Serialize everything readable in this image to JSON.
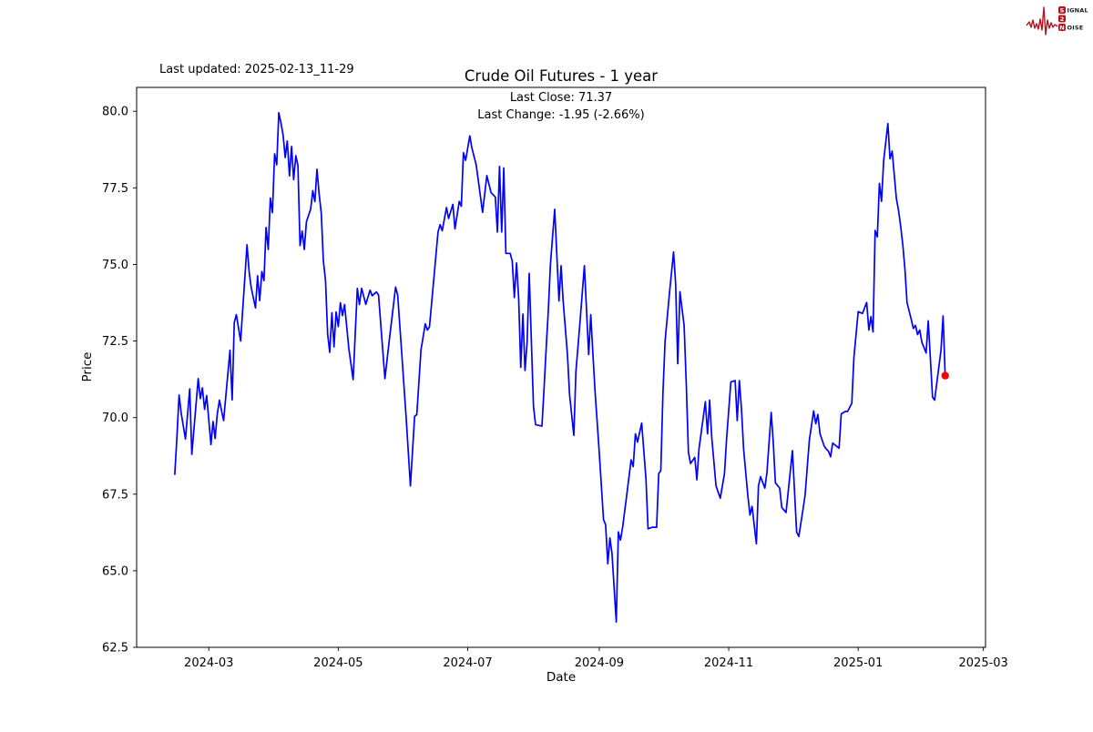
{
  "header": {
    "last_updated": "Last updated: 2025-02-13_11-29",
    "title": "Crude Oil Futures - 1 year",
    "annotation_line1": "Last Close: 71.37",
    "annotation_line2": "Last Change: -1.95 (-2.66%)"
  },
  "logo": {
    "letter1": "S",
    "word1": "IGNAL",
    "letter2": "2",
    "letter3": "N",
    "word2": "OISE",
    "color": "#b5121b"
  },
  "chart_data": {
    "type": "line",
    "title": "Crude Oil Futures - 1 year",
    "xlabel": "Date",
    "ylabel": "Price",
    "legend": "none",
    "grid": false,
    "line_color": "#0000ff",
    "last_point_color": "#ff0000",
    "last_close": 71.37,
    "last_change_abs": -1.95,
    "last_change_pct": -2.66,
    "xlim": [
      "2024-01-27",
      "2025-03-02"
    ],
    "ylim": [
      62.5,
      80.78
    ],
    "y_ticks": [
      62.5,
      65.0,
      67.5,
      70.0,
      72.5,
      75.0,
      77.5,
      80.0
    ],
    "x_ticks": [
      {
        "date": "2024-03-01",
        "label": "2024-03"
      },
      {
        "date": "2024-05-01",
        "label": "2024-05"
      },
      {
        "date": "2024-07-01",
        "label": "2024-07"
      },
      {
        "date": "2024-09-01",
        "label": "2024-09"
      },
      {
        "date": "2024-11-01",
        "label": "2024-11"
      },
      {
        "date": "2025-01-01",
        "label": "2025-01"
      },
      {
        "date": "2025-03-01",
        "label": "2025-03"
      }
    ],
    "series": [
      [
        "2024-02-14",
        68.15
      ],
      [
        "2024-02-15",
        69.4
      ],
      [
        "2024-02-16",
        70.74
      ],
      [
        "2024-02-17",
        70.15
      ],
      [
        "2024-02-19",
        69.3
      ],
      [
        "2024-02-21",
        70.94
      ],
      [
        "2024-02-22",
        68.8
      ],
      [
        "2024-02-25",
        71.27
      ],
      [
        "2024-02-26",
        70.62
      ],
      [
        "2024-02-27",
        70.97
      ],
      [
        "2024-02-28",
        70.27
      ],
      [
        "2024-02-29",
        70.72
      ],
      [
        "2024-03-02",
        69.12
      ],
      [
        "2024-03-03",
        69.87
      ],
      [
        "2024-03-04",
        69.32
      ],
      [
        "2024-03-05",
        70.1
      ],
      [
        "2024-03-06",
        70.57
      ],
      [
        "2024-03-08",
        69.9
      ],
      [
        "2024-03-11",
        72.2
      ],
      [
        "2024-03-12",
        70.58
      ],
      [
        "2024-03-13",
        73.1
      ],
      [
        "2024-03-14",
        73.36
      ],
      [
        "2024-03-16",
        72.5
      ],
      [
        "2024-03-19",
        75.64
      ],
      [
        "2024-03-20",
        74.77
      ],
      [
        "2024-03-21",
        74.24
      ],
      [
        "2024-03-23",
        73.58
      ],
      [
        "2024-03-24",
        74.63
      ],
      [
        "2024-03-25",
        73.82
      ],
      [
        "2024-03-26",
        74.77
      ],
      [
        "2024-03-27",
        74.47
      ],
      [
        "2024-03-28",
        76.21
      ],
      [
        "2024-03-29",
        75.49
      ],
      [
        "2024-03-30",
        77.17
      ],
      [
        "2024-03-31",
        76.69
      ],
      [
        "2024-04-01",
        78.61
      ],
      [
        "2024-04-02",
        78.25
      ],
      [
        "2024-04-03",
        79.95
      ],
      [
        "2024-04-04",
        79.63
      ],
      [
        "2024-04-05",
        79.23
      ],
      [
        "2024-04-06",
        78.49
      ],
      [
        "2024-04-07",
        79.03
      ],
      [
        "2024-04-08",
        77.89
      ],
      [
        "2024-04-09",
        78.85
      ],
      [
        "2024-04-10",
        77.77
      ],
      [
        "2024-04-11",
        78.55
      ],
      [
        "2024-04-12",
        78.23
      ],
      [
        "2024-04-13",
        75.61
      ],
      [
        "2024-04-14",
        76.09
      ],
      [
        "2024-04-15",
        75.49
      ],
      [
        "2024-04-16",
        76.39
      ],
      [
        "2024-04-18",
        76.81
      ],
      [
        "2024-04-19",
        77.41
      ],
      [
        "2024-04-20",
        77.05
      ],
      [
        "2024-04-21",
        78.11
      ],
      [
        "2024-04-22",
        77.29
      ],
      [
        "2024-04-23",
        76.69
      ],
      [
        "2024-04-24",
        75.13
      ],
      [
        "2024-04-25",
        74.47
      ],
      [
        "2024-04-26",
        72.73
      ],
      [
        "2024-04-27",
        72.13
      ],
      [
        "2024-04-28",
        73.42
      ],
      [
        "2024-04-29",
        72.31
      ],
      [
        "2024-04-30",
        73.45
      ],
      [
        "2024-05-01",
        72.97
      ],
      [
        "2024-05-02",
        73.75
      ],
      [
        "2024-05-03",
        73.33
      ],
      [
        "2024-05-04",
        73.69
      ],
      [
        "2024-05-06",
        72.25
      ],
      [
        "2024-05-08",
        71.24
      ],
      [
        "2024-05-10",
        74.22
      ],
      [
        "2024-05-11",
        73.69
      ],
      [
        "2024-05-12",
        74.22
      ],
      [
        "2024-05-14",
        73.7
      ],
      [
        "2024-05-16",
        74.16
      ],
      [
        "2024-05-17",
        73.98
      ],
      [
        "2024-05-19",
        74.1
      ],
      [
        "2024-05-20",
        74.0
      ],
      [
        "2024-05-23",
        71.27
      ],
      [
        "2024-05-25",
        72.5
      ],
      [
        "2024-05-28",
        74.26
      ],
      [
        "2024-05-29",
        74.0
      ],
      [
        "2024-05-31",
        72.0
      ],
      [
        "2024-06-02",
        70.0
      ],
      [
        "2024-06-04",
        67.77
      ],
      [
        "2024-06-06",
        70.04
      ],
      [
        "2024-06-07",
        70.1
      ],
      [
        "2024-06-09",
        72.21
      ],
      [
        "2024-06-11",
        73.06
      ],
      [
        "2024-06-12",
        72.86
      ],
      [
        "2024-06-13",
        72.96
      ],
      [
        "2024-06-15",
        74.5
      ],
      [
        "2024-06-17",
        76.06
      ],
      [
        "2024-06-18",
        76.3
      ],
      [
        "2024-06-19",
        76.1
      ],
      [
        "2024-06-21",
        76.86
      ],
      [
        "2024-06-22",
        76.5
      ],
      [
        "2024-06-24",
        76.96
      ],
      [
        "2024-06-25",
        76.16
      ],
      [
        "2024-06-27",
        77.06
      ],
      [
        "2024-06-28",
        76.9
      ],
      [
        "2024-06-29",
        78.65
      ],
      [
        "2024-06-30",
        78.4
      ],
      [
        "2024-07-02",
        79.2
      ],
      [
        "2024-07-03",
        78.8
      ],
      [
        "2024-07-05",
        78.25
      ],
      [
        "2024-07-06",
        77.75
      ],
      [
        "2024-07-08",
        76.7
      ],
      [
        "2024-07-10",
        77.9
      ],
      [
        "2024-07-12",
        77.35
      ],
      [
        "2024-07-14",
        77.2
      ],
      [
        "2024-07-15",
        76.06
      ],
      [
        "2024-07-16",
        78.2
      ],
      [
        "2024-07-17",
        76.06
      ],
      [
        "2024-07-18",
        78.15
      ],
      [
        "2024-07-19",
        75.36
      ],
      [
        "2024-07-21",
        75.36
      ],
      [
        "2024-07-22",
        75.11
      ],
      [
        "2024-07-23",
        73.92
      ],
      [
        "2024-07-24",
        75.05
      ],
      [
        "2024-07-25",
        73.92
      ],
      [
        "2024-07-26",
        71.64
      ],
      [
        "2024-07-27",
        73.38
      ],
      [
        "2024-07-28",
        71.54
      ],
      [
        "2024-07-29",
        72.46
      ],
      [
        "2024-07-30",
        74.71
      ],
      [
        "2024-08-01",
        70.37
      ],
      [
        "2024-08-02",
        69.77
      ],
      [
        "2024-08-05",
        69.72
      ],
      [
        "2024-08-06",
        71.0
      ],
      [
        "2024-08-07",
        72.3
      ],
      [
        "2024-08-08",
        73.5
      ],
      [
        "2024-08-09",
        75.0
      ],
      [
        "2024-08-11",
        76.8
      ],
      [
        "2024-08-13",
        73.81
      ],
      [
        "2024-08-14",
        74.96
      ],
      [
        "2024-08-15",
        73.8
      ],
      [
        "2024-08-17",
        72.06
      ],
      [
        "2024-08-18",
        70.76
      ],
      [
        "2024-08-20",
        69.42
      ],
      [
        "2024-08-21",
        71.5
      ],
      [
        "2024-08-23",
        73.2
      ],
      [
        "2024-08-25",
        74.96
      ],
      [
        "2024-08-27",
        72.06
      ],
      [
        "2024-08-28",
        73.36
      ],
      [
        "2024-08-29",
        72.06
      ],
      [
        "2024-08-30",
        70.86
      ],
      [
        "2024-09-01",
        68.87
      ],
      [
        "2024-09-03",
        66.67
      ],
      [
        "2024-09-04",
        66.5
      ],
      [
        "2024-09-05",
        65.23
      ],
      [
        "2024-09-06",
        66.07
      ],
      [
        "2024-09-07",
        65.57
      ],
      [
        "2024-09-09",
        63.33
      ],
      [
        "2024-09-10",
        66.27
      ],
      [
        "2024-09-11",
        66.0
      ],
      [
        "2024-09-12",
        66.42
      ],
      [
        "2024-09-14",
        67.5
      ],
      [
        "2024-09-16",
        68.62
      ],
      [
        "2024-09-17",
        68.4
      ],
      [
        "2024-09-18",
        69.47
      ],
      [
        "2024-09-19",
        69.2
      ],
      [
        "2024-09-21",
        69.82
      ],
      [
        "2024-09-23",
        68.0
      ],
      [
        "2024-09-24",
        66.37
      ],
      [
        "2024-09-26",
        66.42
      ],
      [
        "2024-09-28",
        66.42
      ],
      [
        "2024-09-29",
        68.17
      ],
      [
        "2024-09-30",
        68.27
      ],
      [
        "2024-10-01",
        70.77
      ],
      [
        "2024-10-02",
        72.5
      ],
      [
        "2024-10-04",
        74.0
      ],
      [
        "2024-10-06",
        75.41
      ],
      [
        "2024-10-07",
        74.36
      ],
      [
        "2024-10-08",
        71.76
      ],
      [
        "2024-10-09",
        74.11
      ],
      [
        "2024-10-11",
        73.0
      ],
      [
        "2024-10-12",
        71.06
      ],
      [
        "2024-10-13",
        68.87
      ],
      [
        "2024-10-14",
        68.5
      ],
      [
        "2024-10-16",
        68.7
      ],
      [
        "2024-10-17",
        67.97
      ],
      [
        "2024-10-18",
        68.97
      ],
      [
        "2024-10-21",
        70.52
      ],
      [
        "2024-10-22",
        69.47
      ],
      [
        "2024-10-23",
        70.57
      ],
      [
        "2024-10-24",
        69.37
      ],
      [
        "2024-10-26",
        67.77
      ],
      [
        "2024-10-28",
        67.37
      ],
      [
        "2024-10-30",
        68.17
      ],
      [
        "2024-10-31",
        69.3
      ],
      [
        "2024-11-02",
        71.16
      ],
      [
        "2024-11-04",
        71.21
      ],
      [
        "2024-11-05",
        69.9
      ],
      [
        "2024-11-06",
        71.21
      ],
      [
        "2024-11-07",
        70.27
      ],
      [
        "2024-11-08",
        68.97
      ],
      [
        "2024-11-10",
        67.47
      ],
      [
        "2024-11-11",
        66.82
      ],
      [
        "2024-11-12",
        67.1
      ],
      [
        "2024-11-14",
        65.88
      ],
      [
        "2024-11-15",
        67.77
      ],
      [
        "2024-11-16",
        68.07
      ],
      [
        "2024-11-18",
        67.7
      ],
      [
        "2024-11-19",
        68.2
      ],
      [
        "2024-11-21",
        70.17
      ],
      [
        "2024-11-22",
        69.17
      ],
      [
        "2024-11-23",
        67.87
      ],
      [
        "2024-11-25",
        67.7
      ],
      [
        "2024-11-26",
        67.07
      ],
      [
        "2024-11-28",
        66.9
      ],
      [
        "2024-12-01",
        68.92
      ],
      [
        "2024-12-03",
        66.27
      ],
      [
        "2024-12-04",
        66.12
      ],
      [
        "2024-12-06",
        67.0
      ],
      [
        "2024-12-07",
        67.47
      ],
      [
        "2024-12-09",
        69.27
      ],
      [
        "2024-12-11",
        70.22
      ],
      [
        "2024-12-12",
        69.8
      ],
      [
        "2024-12-13",
        70.1
      ],
      [
        "2024-12-14",
        69.47
      ],
      [
        "2024-12-16",
        69.07
      ],
      [
        "2024-12-17",
        68.97
      ],
      [
        "2024-12-18",
        68.9
      ],
      [
        "2024-12-19",
        68.72
      ],
      [
        "2024-12-20",
        69.17
      ],
      [
        "2024-12-23",
        69.0
      ],
      [
        "2024-12-24",
        70.12
      ],
      [
        "2024-12-26",
        70.2
      ],
      [
        "2024-12-27",
        70.2
      ],
      [
        "2024-12-29",
        70.47
      ],
      [
        "2024-12-30",
        71.96
      ],
      [
        "2025-01-01",
        73.46
      ],
      [
        "2025-01-03",
        73.4
      ],
      [
        "2025-01-05",
        73.76
      ],
      [
        "2025-01-06",
        72.86
      ],
      [
        "2025-01-07",
        73.3
      ],
      [
        "2025-01-08",
        72.8
      ],
      [
        "2025-01-09",
        76.11
      ],
      [
        "2025-01-10",
        75.9
      ],
      [
        "2025-01-11",
        77.65
      ],
      [
        "2025-01-12",
        77.06
      ],
      [
        "2025-01-13",
        78.4
      ],
      [
        "2025-01-15",
        79.6
      ],
      [
        "2025-01-16",
        78.45
      ],
      [
        "2025-01-17",
        78.7
      ],
      [
        "2025-01-19",
        77.16
      ],
      [
        "2025-01-20",
        76.76
      ],
      [
        "2025-01-21",
        76.26
      ],
      [
        "2025-01-22",
        75.66
      ],
      [
        "2025-01-23",
        74.86
      ],
      [
        "2025-01-24",
        73.76
      ],
      [
        "2025-01-26",
        73.21
      ],
      [
        "2025-01-27",
        72.91
      ],
      [
        "2025-01-28",
        73.01
      ],
      [
        "2025-01-29",
        72.71
      ],
      [
        "2025-01-30",
        72.86
      ],
      [
        "2025-01-31",
        72.46
      ],
      [
        "2025-02-02",
        72.11
      ],
      [
        "2025-02-03",
        73.16
      ],
      [
        "2025-02-04",
        71.96
      ],
      [
        "2025-02-05",
        70.67
      ],
      [
        "2025-02-06",
        70.57
      ],
      [
        "2025-02-07",
        71.1
      ],
      [
        "2025-02-09",
        72.2
      ],
      [
        "2025-02-10",
        73.32
      ],
      [
        "2025-02-11",
        71.37
      ]
    ]
  }
}
